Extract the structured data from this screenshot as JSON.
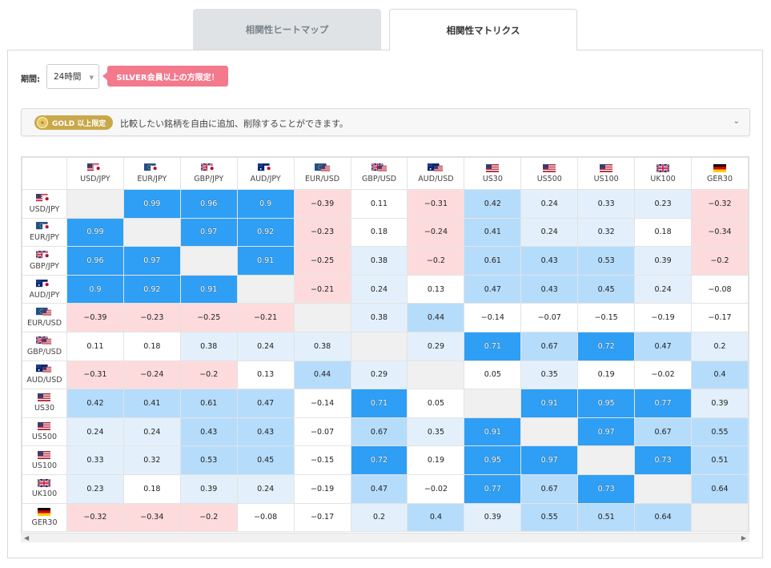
{
  "tabs": [
    {
      "label": "相関性ヒートマップ"
    },
    {
      "label": "相関性マトリクス"
    }
  ],
  "period": {
    "label": "期間:",
    "value": "24時間"
  },
  "silver_badge": "SILVER会員以上の方限定！",
  "gold_bar": {
    "badge": "GOLD 以上限定",
    "text": "比較したい銘柄を自由に追加、削除することができます。"
  },
  "colors": {
    "very_high": "#2e9ff5",
    "high": "#b6dcfb",
    "mid": "#e3f0fb",
    "negative": "#fddbdd",
    "diagonal": "#f0f0f0"
  },
  "matrix": {
    "symbols": [
      {
        "label": "USD/JPY",
        "flag": "us-jp"
      },
      {
        "label": "EUR/JPY",
        "flag": "eu-jp"
      },
      {
        "label": "GBP/JPY",
        "flag": "gb-jp"
      },
      {
        "label": "AUD/JPY",
        "flag": "au-jp"
      },
      {
        "label": "EUR/USD",
        "flag": "eu-us"
      },
      {
        "label": "GBP/USD",
        "flag": "gb-us"
      },
      {
        "label": "AUD/USD",
        "flag": "au-us"
      },
      {
        "label": "US30",
        "flag": "us"
      },
      {
        "label": "US500",
        "flag": "us"
      },
      {
        "label": "US100",
        "flag": "us"
      },
      {
        "label": "UK100",
        "flag": "gb"
      },
      {
        "label": "GER30",
        "flag": "de"
      }
    ],
    "rows": [
      [
        "",
        "0.99",
        "0.96",
        "0.9",
        "−0.39",
        "0.11",
        "−0.31",
        "0.42",
        "0.24",
        "0.33",
        "0.23",
        "−0.32"
      ],
      [
        "0.99",
        "",
        "0.97",
        "0.92",
        "−0.23",
        "0.18",
        "−0.24",
        "0.41",
        "0.24",
        "0.32",
        "0.18",
        "−0.34"
      ],
      [
        "0.96",
        "0.97",
        "",
        "0.91",
        "−0.25",
        "0.38",
        "−0.2",
        "0.61",
        "0.43",
        "0.53",
        "0.39",
        "−0.2"
      ],
      [
        "0.9",
        "0.92",
        "0.91",
        "",
        "−0.21",
        "0.24",
        "0.13",
        "0.47",
        "0.43",
        "0.45",
        "0.24",
        "−0.08"
      ],
      [
        "−0.39",
        "−0.23",
        "−0.25",
        "−0.21",
        "",
        "0.38",
        "0.44",
        "−0.14",
        "−0.07",
        "−0.15",
        "−0.19",
        "−0.17"
      ],
      [
        "0.11",
        "0.18",
        "0.38",
        "0.24",
        "0.38",
        "",
        "0.29",
        "0.71",
        "0.67",
        "0.72",
        "0.47",
        "0.2"
      ],
      [
        "−0.31",
        "−0.24",
        "−0.2",
        "0.13",
        "0.44",
        "0.29",
        "",
        "0.05",
        "0.35",
        "0.19",
        "−0.02",
        "0.4"
      ],
      [
        "0.42",
        "0.41",
        "0.61",
        "0.47",
        "−0.14",
        "0.71",
        "0.05",
        "",
        "0.91",
        "0.95",
        "0.77",
        "0.39"
      ],
      [
        "0.24",
        "0.24",
        "0.43",
        "0.43",
        "−0.07",
        "0.67",
        "0.35",
        "0.91",
        "",
        "0.97",
        "0.67",
        "0.55"
      ],
      [
        "0.33",
        "0.32",
        "0.53",
        "0.45",
        "−0.15",
        "0.72",
        "0.19",
        "0.95",
        "0.97",
        "",
        "0.73",
        "0.51"
      ],
      [
        "0.23",
        "0.18",
        "0.39",
        "0.24",
        "−0.19",
        "0.47",
        "−0.02",
        "0.77",
        "0.67",
        "0.73",
        "",
        "0.64"
      ],
      [
        "−0.32",
        "−0.34",
        "−0.2",
        "−0.08",
        "−0.17",
        "0.2",
        "0.4",
        "0.39",
        "0.55",
        "0.51",
        "0.64",
        ""
      ]
    ]
  }
}
